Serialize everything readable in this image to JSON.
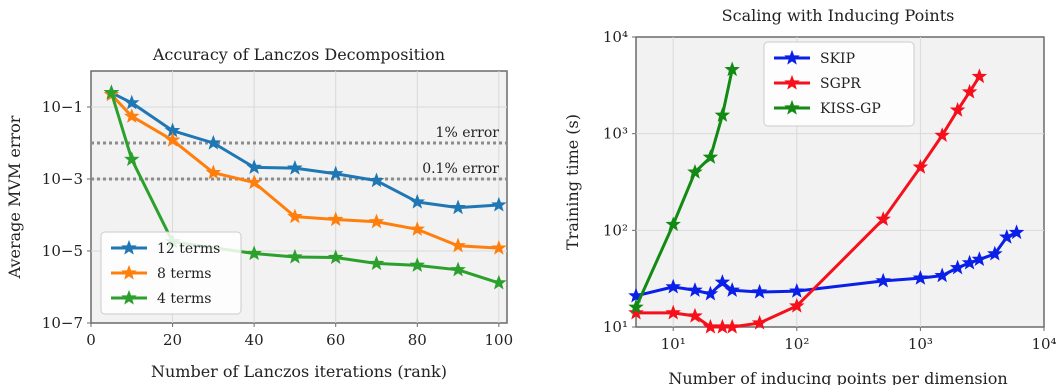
{
  "chart_data": [
    {
      "type": "line",
      "title": "Accuracy of Lanczos Decomposition",
      "xlabel": "Number of Lanczos iterations (rank)",
      "ylabel": "Average MVM error",
      "xlim": [
        0,
        102
      ],
      "ylim": [
        1e-07,
        1
      ],
      "xscale": "linear",
      "yscale": "log",
      "x_ticks": [
        0,
        20,
        40,
        60,
        80,
        100
      ],
      "x_tick_labels": [
        "0",
        "20",
        "40",
        "60",
        "80",
        "100"
      ],
      "y_ticks": [
        1e-07,
        1e-05,
        0.001,
        0.1
      ],
      "y_tick_labels": [
        "10−7",
        "10−5",
        "10−3",
        "10−1"
      ],
      "grid": true,
      "legend_position": "bottom-left",
      "reference_lines": [
        {
          "y": 0.01,
          "label": "1% error",
          "color": "#8c8c8c"
        },
        {
          "y": 0.001,
          "label": "0.1% error",
          "color": "#8c8c8c"
        }
      ],
      "series": [
        {
          "name": "12 terms",
          "color": "#1f77b4",
          "x": [
            5,
            10,
            20,
            30,
            40,
            50,
            60,
            70,
            80,
            90,
            100
          ],
          "y": [
            0.25,
            0.13,
            0.022,
            0.01,
            0.0021,
            0.002,
            0.0014,
            0.0009,
            0.00023,
            0.00016,
            0.00019
          ]
        },
        {
          "name": "8 terms",
          "color": "#ff7f0e",
          "x": [
            5,
            10,
            20,
            30,
            40,
            50,
            60,
            70,
            80,
            90,
            100
          ],
          "y": [
            0.22,
            0.055,
            0.012,
            0.0015,
            0.0008,
            9e-05,
            7.5e-05,
            6.5e-05,
            4e-05,
            1.4e-05,
            1.2e-05
          ]
        },
        {
          "name": "4 terms",
          "color": "#2ca02c",
          "x": [
            5,
            10,
            20,
            40,
            50,
            60,
            70,
            80,
            90,
            100
          ],
          "y": [
            0.25,
            0.0035,
            1.8e-05,
            8.5e-06,
            6.8e-06,
            6.6e-06,
            4.5e-06,
            4e-06,
            3e-06,
            1.3e-06
          ]
        }
      ]
    },
    {
      "type": "line",
      "title": "Scaling with Inducing Points",
      "xlabel": "Number of inducing points per dimension",
      "ylabel": "Training time (s)",
      "xlim": [
        5,
        10000
      ],
      "ylim": [
        10,
        10000
      ],
      "xscale": "log",
      "yscale": "log",
      "x_ticks": [
        10,
        100,
        1000,
        10000
      ],
      "x_tick_labels": [
        "10¹",
        "10²",
        "10³",
        "10⁴"
      ],
      "y_ticks": [
        10,
        100,
        1000,
        10000
      ],
      "y_tick_labels": [
        "10¹",
        "10²",
        "10³",
        "10⁴"
      ],
      "grid": true,
      "legend_position": "top-left",
      "series": [
        {
          "name": "SKIP",
          "color": "#0a1fe8",
          "x": [
            5,
            10,
            15,
            20,
            25,
            30,
            50,
            100,
            500,
            1000,
            1500,
            2000,
            2500,
            3000,
            4000,
            5000,
            6000
          ],
          "y": [
            21,
            26,
            24,
            22,
            29,
            24,
            23,
            23.5,
            30,
            32,
            34,
            41,
            46,
            50,
            57,
            85,
            95
          ]
        },
        {
          "name": "SGPR",
          "color": "#f5101c",
          "x": [
            5,
            10,
            15,
            20,
            25,
            30,
            50,
            100,
            500,
            1000,
            1500,
            2000,
            2500,
            3000
          ],
          "y": [
            14,
            14,
            13,
            10,
            10,
            10,
            11,
            16.5,
            130,
            450,
            960,
            1750,
            2700,
            3900
          ]
        },
        {
          "name": "KISS-GP",
          "color": "#138a13",
          "x": [
            5,
            10,
            15,
            20,
            25,
            30
          ],
          "y": [
            16,
            115,
            400,
            570,
            1550,
            4600
          ]
        }
      ]
    }
  ]
}
